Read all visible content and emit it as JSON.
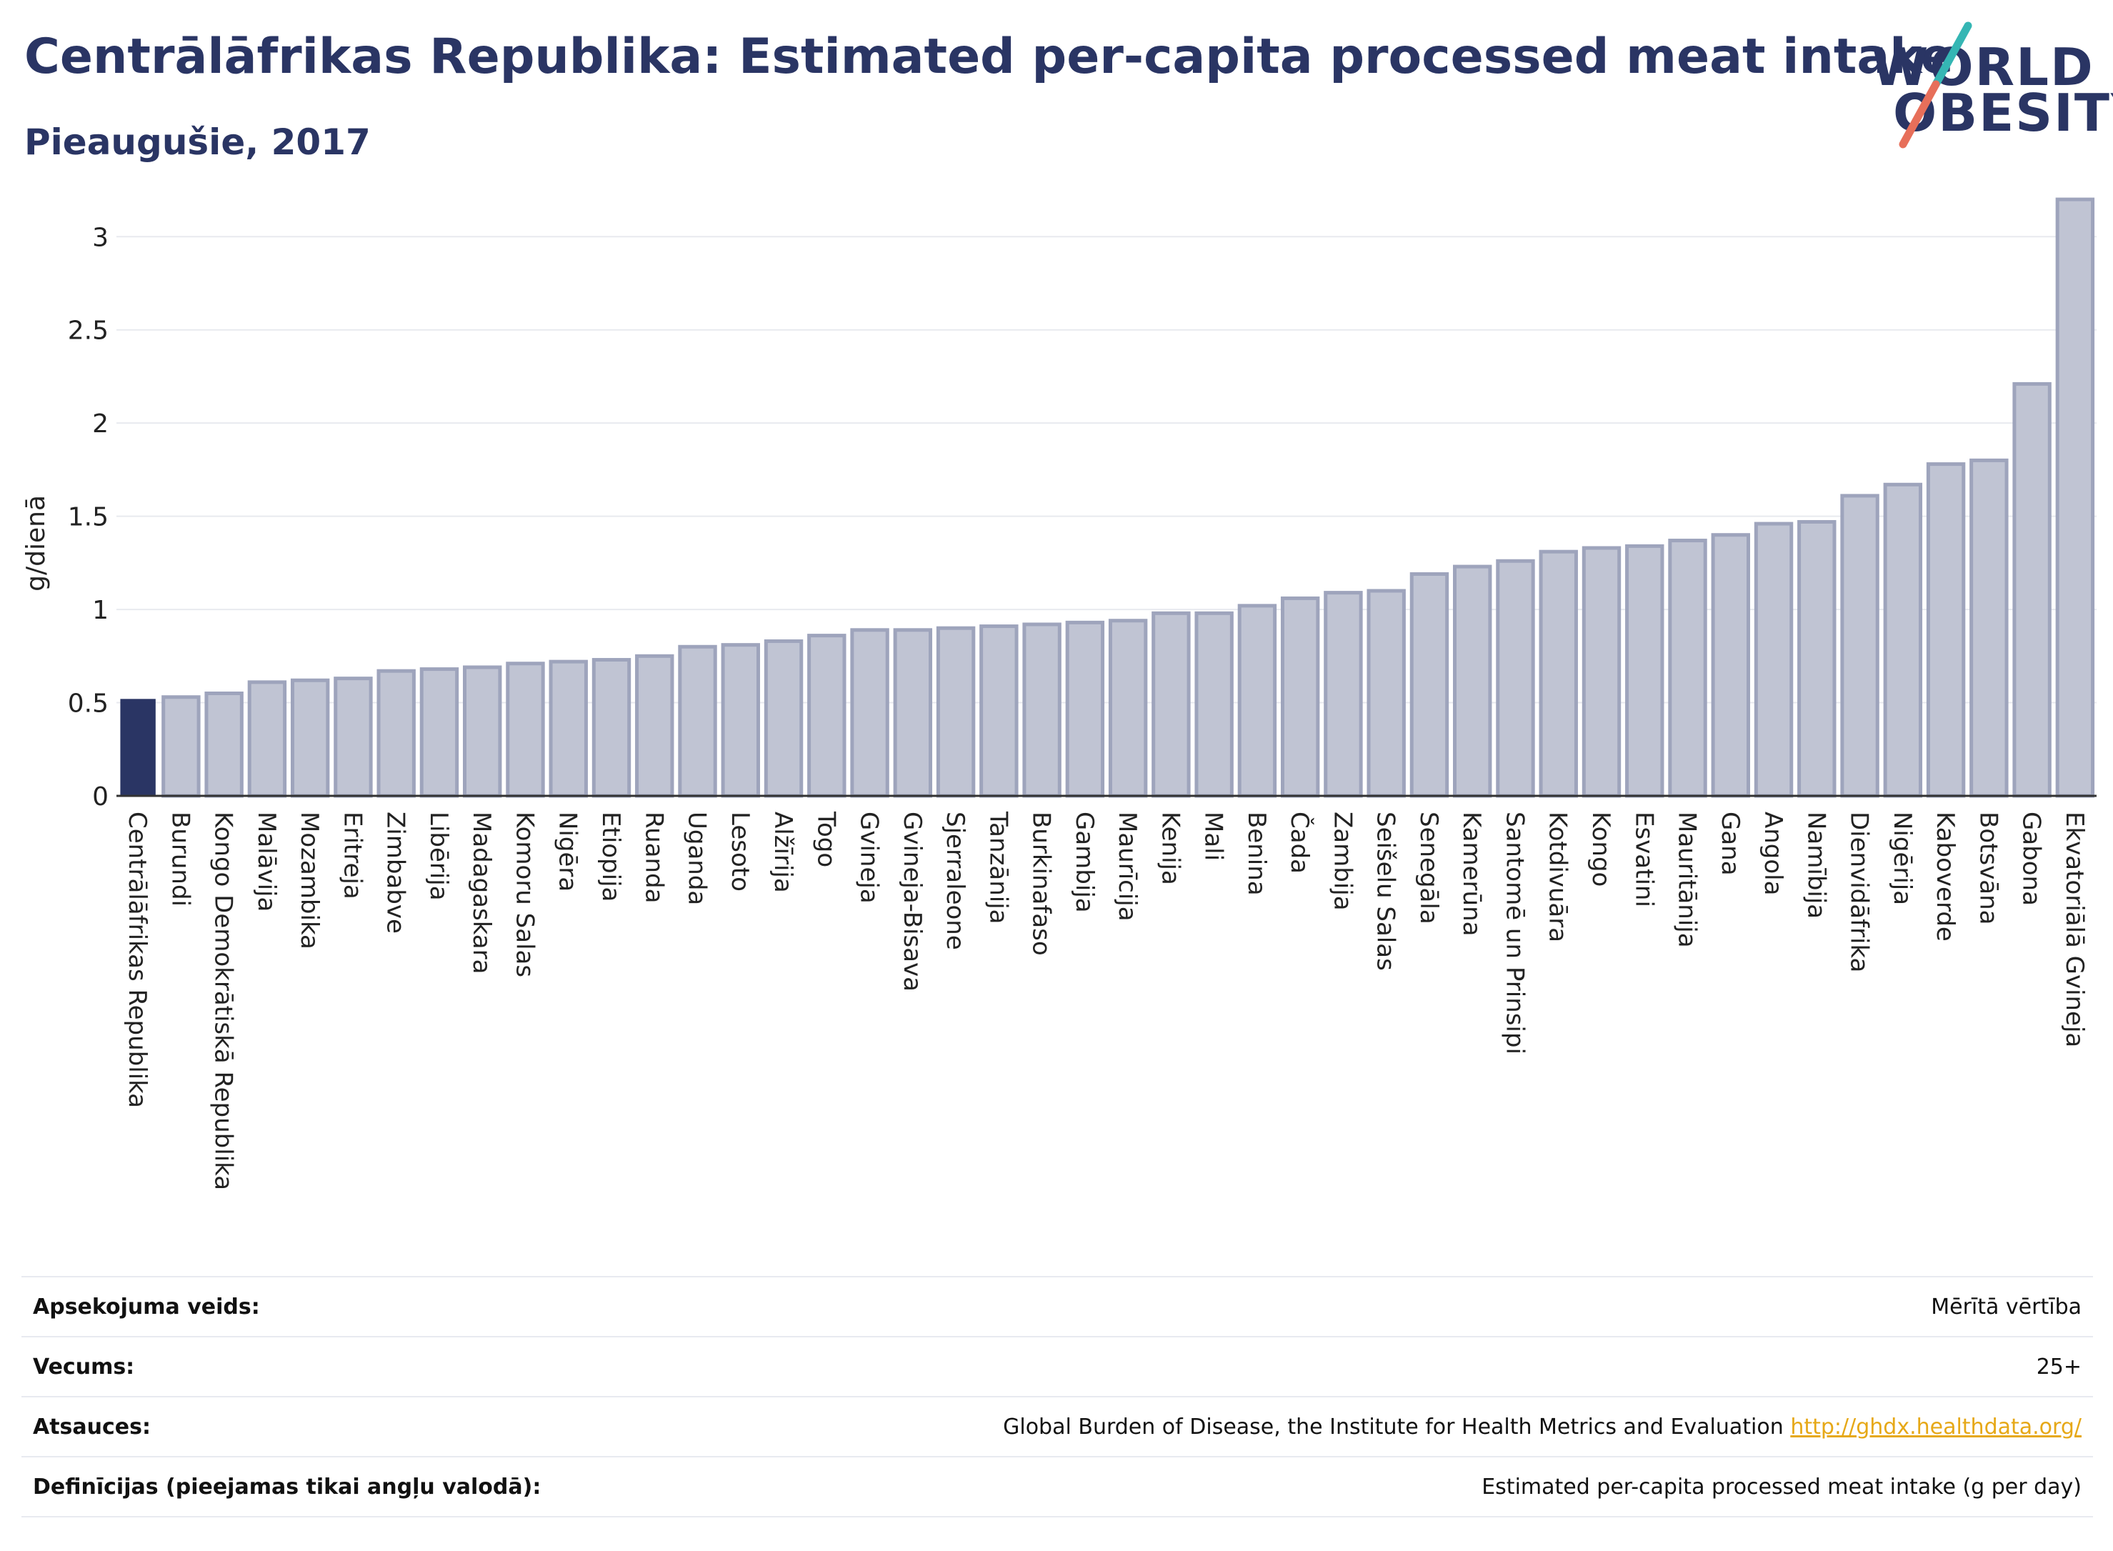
{
  "header": {
    "title": "Centrālāfrikas Republika: Estimated per-capita processed meat intake",
    "subtitle": "Pieaugušie, 2017"
  },
  "logo": {
    "line1": "WORLD",
    "line2": "OBESITY",
    "colors": {
      "teal": "#35b6b4",
      "coral": "#e76f5a"
    }
  },
  "colors": {
    "highlight": "#2a3564",
    "bar_fill": "#c0c4d3",
    "bar_stroke": "#9ea4bc",
    "grid": "#e8eaef",
    "axis": "#333333"
  },
  "chart_data": {
    "type": "bar",
    "ylabel": "g/dienā",
    "ylim": [
      0,
      3.3
    ],
    "yticks": [
      0,
      0.5,
      1,
      1.5,
      2,
      2.5,
      3
    ],
    "ytick_labels": [
      "0",
      "0.5",
      "1",
      "1.5",
      "2",
      "2.5",
      "3"
    ],
    "highlight_index": 0,
    "categories": [
      "Centrālāfrikas Republika",
      "Burundi",
      "Kongo Demokrātiskā Republika",
      "Malāvija",
      "Mozambika",
      "Eritreja",
      "Zimbabve",
      "Libērija",
      "Madagaskara",
      "Komoru Salas",
      "Nigēra",
      "Etiopija",
      "Ruanda",
      "Uganda",
      "Lesoto",
      "Alžīrija",
      "Togo",
      "Gvineja",
      "Gvineja-Bisava",
      "Sjerraleone",
      "Tanzānija",
      "Burkinafaso",
      "Gambija",
      "Maurīcija",
      "Kenija",
      "Mali",
      "Benina",
      "Čada",
      "Zambija",
      "Seišelu Salas",
      "Senegāla",
      "Kamerūna",
      "Santomē un Prinsipi",
      "Kotdivuāra",
      "Kongo",
      "Esvatini",
      "Mauritānija",
      "Gana",
      "Angola",
      "Namībija",
      "Dienvidāfrika",
      "Nigērija",
      "Kaboverde",
      "Botsvāna",
      "Gabona",
      "Ekvatoriālā Gvineja"
    ],
    "values": [
      0.52,
      0.53,
      0.55,
      0.61,
      0.62,
      0.63,
      0.67,
      0.68,
      0.69,
      0.71,
      0.72,
      0.73,
      0.75,
      0.8,
      0.81,
      0.83,
      0.86,
      0.89,
      0.89,
      0.9,
      0.91,
      0.92,
      0.93,
      0.94,
      0.98,
      0.98,
      1.02,
      1.06,
      1.09,
      1.1,
      1.19,
      1.23,
      1.26,
      1.31,
      1.33,
      1.34,
      1.37,
      1.4,
      1.46,
      1.47,
      1.61,
      1.67,
      1.78,
      1.8,
      2.21,
      3.2
    ]
  },
  "info_table": [
    {
      "key": "Apsekojuma veids:",
      "value": "Mērītā vērtība"
    },
    {
      "key": "Vecums:",
      "value": "25+"
    },
    {
      "key": "Atsauces:",
      "value": "Global Burden of Disease, the Institute for Health Metrics and Evaluation",
      "link": "http://ghdx.healthdata.org/"
    },
    {
      "key": "Definīcijas (pieejamas tikai angļu valodā):",
      "value": "Estimated per-capita processed meat intake (g per day)"
    }
  ]
}
